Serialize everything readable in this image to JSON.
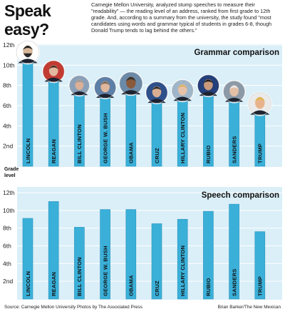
{
  "header": {
    "title": "Speak easy?",
    "intro": "Carnegie Mellon University, analyzed stump speeches to measure their \"readability\" — the reading level of an address, ranked from first grade to 12th grade. And, according to a summary from the university, the study found \"most candidates using words and grammar typical of students in grades 6-8, though Donald Trump tends to lag behind the others.\""
  },
  "axis": {
    "ylabel_line1": "Grade",
    "ylabel_line2": "level"
  },
  "colors": {
    "bar": "#3ab0d9",
    "bar_stroke": "#2a93bb",
    "panel_bg": "#daeff8",
    "grid": "#ffffff"
  },
  "footer": {
    "source": "Source: Carnegie Mellon University   Photos by The Associated Press",
    "credit": "Brian Barker/The New Mexican"
  },
  "chart_data": [
    {
      "type": "bar",
      "title": "Grammar comparison",
      "categories": [
        "LINCOLN",
        "REAGAN",
        "BILL CLINTON",
        "GEORGE W. BUSH",
        "OBAMA",
        "CRUZ",
        "HILLARY CLINTON",
        "RUBIO",
        "SANDERS",
        "TRUMP"
      ],
      "values": [
        11,
        9.1,
        7.7,
        7.5,
        7.9,
        7.0,
        7.2,
        7.7,
        7.1,
        5.9
      ],
      "yticks": [
        "2nd",
        "4th",
        "6th",
        "8th",
        "10th",
        "12th"
      ],
      "ylim": [
        0,
        12
      ],
      "grid": true,
      "portraits": [
        "Abraham Lincoln",
        "Ronald Reagan",
        "Bill Clinton",
        "George W. Bush",
        "Barack Obama",
        "Ted Cruz",
        "Hillary Clinton",
        "Marco Rubio",
        "Bernie Sanders",
        "Donald Trump"
      ]
    },
    {
      "type": "bar",
      "title": "Speech comparison",
      "categories": [
        "LINCOLN",
        "REAGAN",
        "BILL CLINTON",
        "GEORGE W. BUSH",
        "OBAMA",
        "CRUZ",
        "HILLARY CLINTON",
        "RUBIO",
        "SANDERS",
        "TRUMP"
      ],
      "values": [
        9.1,
        11.0,
        8.1,
        10.1,
        10.1,
        8.5,
        9.0,
        9.9,
        10.7,
        7.6
      ],
      "yticks": [
        "2nd",
        "4th",
        "6th",
        "8th",
        "10th",
        "12th"
      ],
      "ylim": [
        0,
        12
      ],
      "grid": true
    }
  ]
}
